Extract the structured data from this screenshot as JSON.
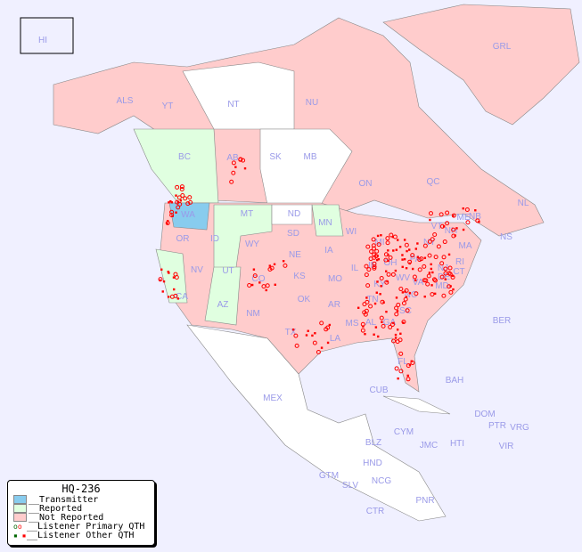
{
  "legend": {
    "title": "HQ-236",
    "items": [
      {
        "label": "__Transmitter",
        "color": "#88ccee"
      },
      {
        "label": "__Reported",
        "color": "#e0ffe0"
      },
      {
        "label": "__Not Reported",
        "color": "#ffcccc"
      },
      {
        "label": "__Listener Primary QTH",
        "color": "#ff0000"
      },
      {
        "label": "__Listener Other QTH",
        "color": "#ff0000"
      }
    ]
  },
  "colors": {
    "water": "#f0f0ff",
    "not_reported": "#ffcccc",
    "reported": "#e0ffe0",
    "transmitter": "#88ccee",
    "unlisted": "#ffffff",
    "labels": "#9a9ae8",
    "dots": "#ff0000",
    "primary_reported": "#006600"
  },
  "regions": [
    "HI",
    "ALS",
    "YT",
    "NT",
    "NU",
    "GRL",
    "BC",
    "AB",
    "SK",
    "MB",
    "ON",
    "QC",
    "NL",
    "NS",
    "WA",
    "OR",
    "CA",
    "NV",
    "ID",
    "MT",
    "WY",
    "UT",
    "AZ",
    "CO",
    "NM",
    "ND",
    "SD",
    "NE",
    "KS",
    "OK",
    "TX",
    "MN",
    "IA",
    "MO",
    "AR",
    "LA",
    "WI",
    "IL",
    "MI",
    "IN",
    "OH",
    "KY",
    "TN",
    "MS",
    "AL",
    "GA",
    "FL",
    "SC",
    "NC",
    "VA",
    "WV",
    "PA",
    "NY",
    "VT",
    "NH",
    "ME",
    "MA",
    "CT",
    "RI",
    "NJ",
    "DE",
    "MD",
    "NB",
    "BER",
    "BAH",
    "CUB",
    "MEX",
    "DOM",
    "PTR",
    "VRG",
    "VIR",
    "CYM",
    "JMC",
    "HTI",
    "BLZ",
    "HND",
    "GTM",
    "SLV",
    "NCG",
    "CTR",
    "PNR"
  ]
}
